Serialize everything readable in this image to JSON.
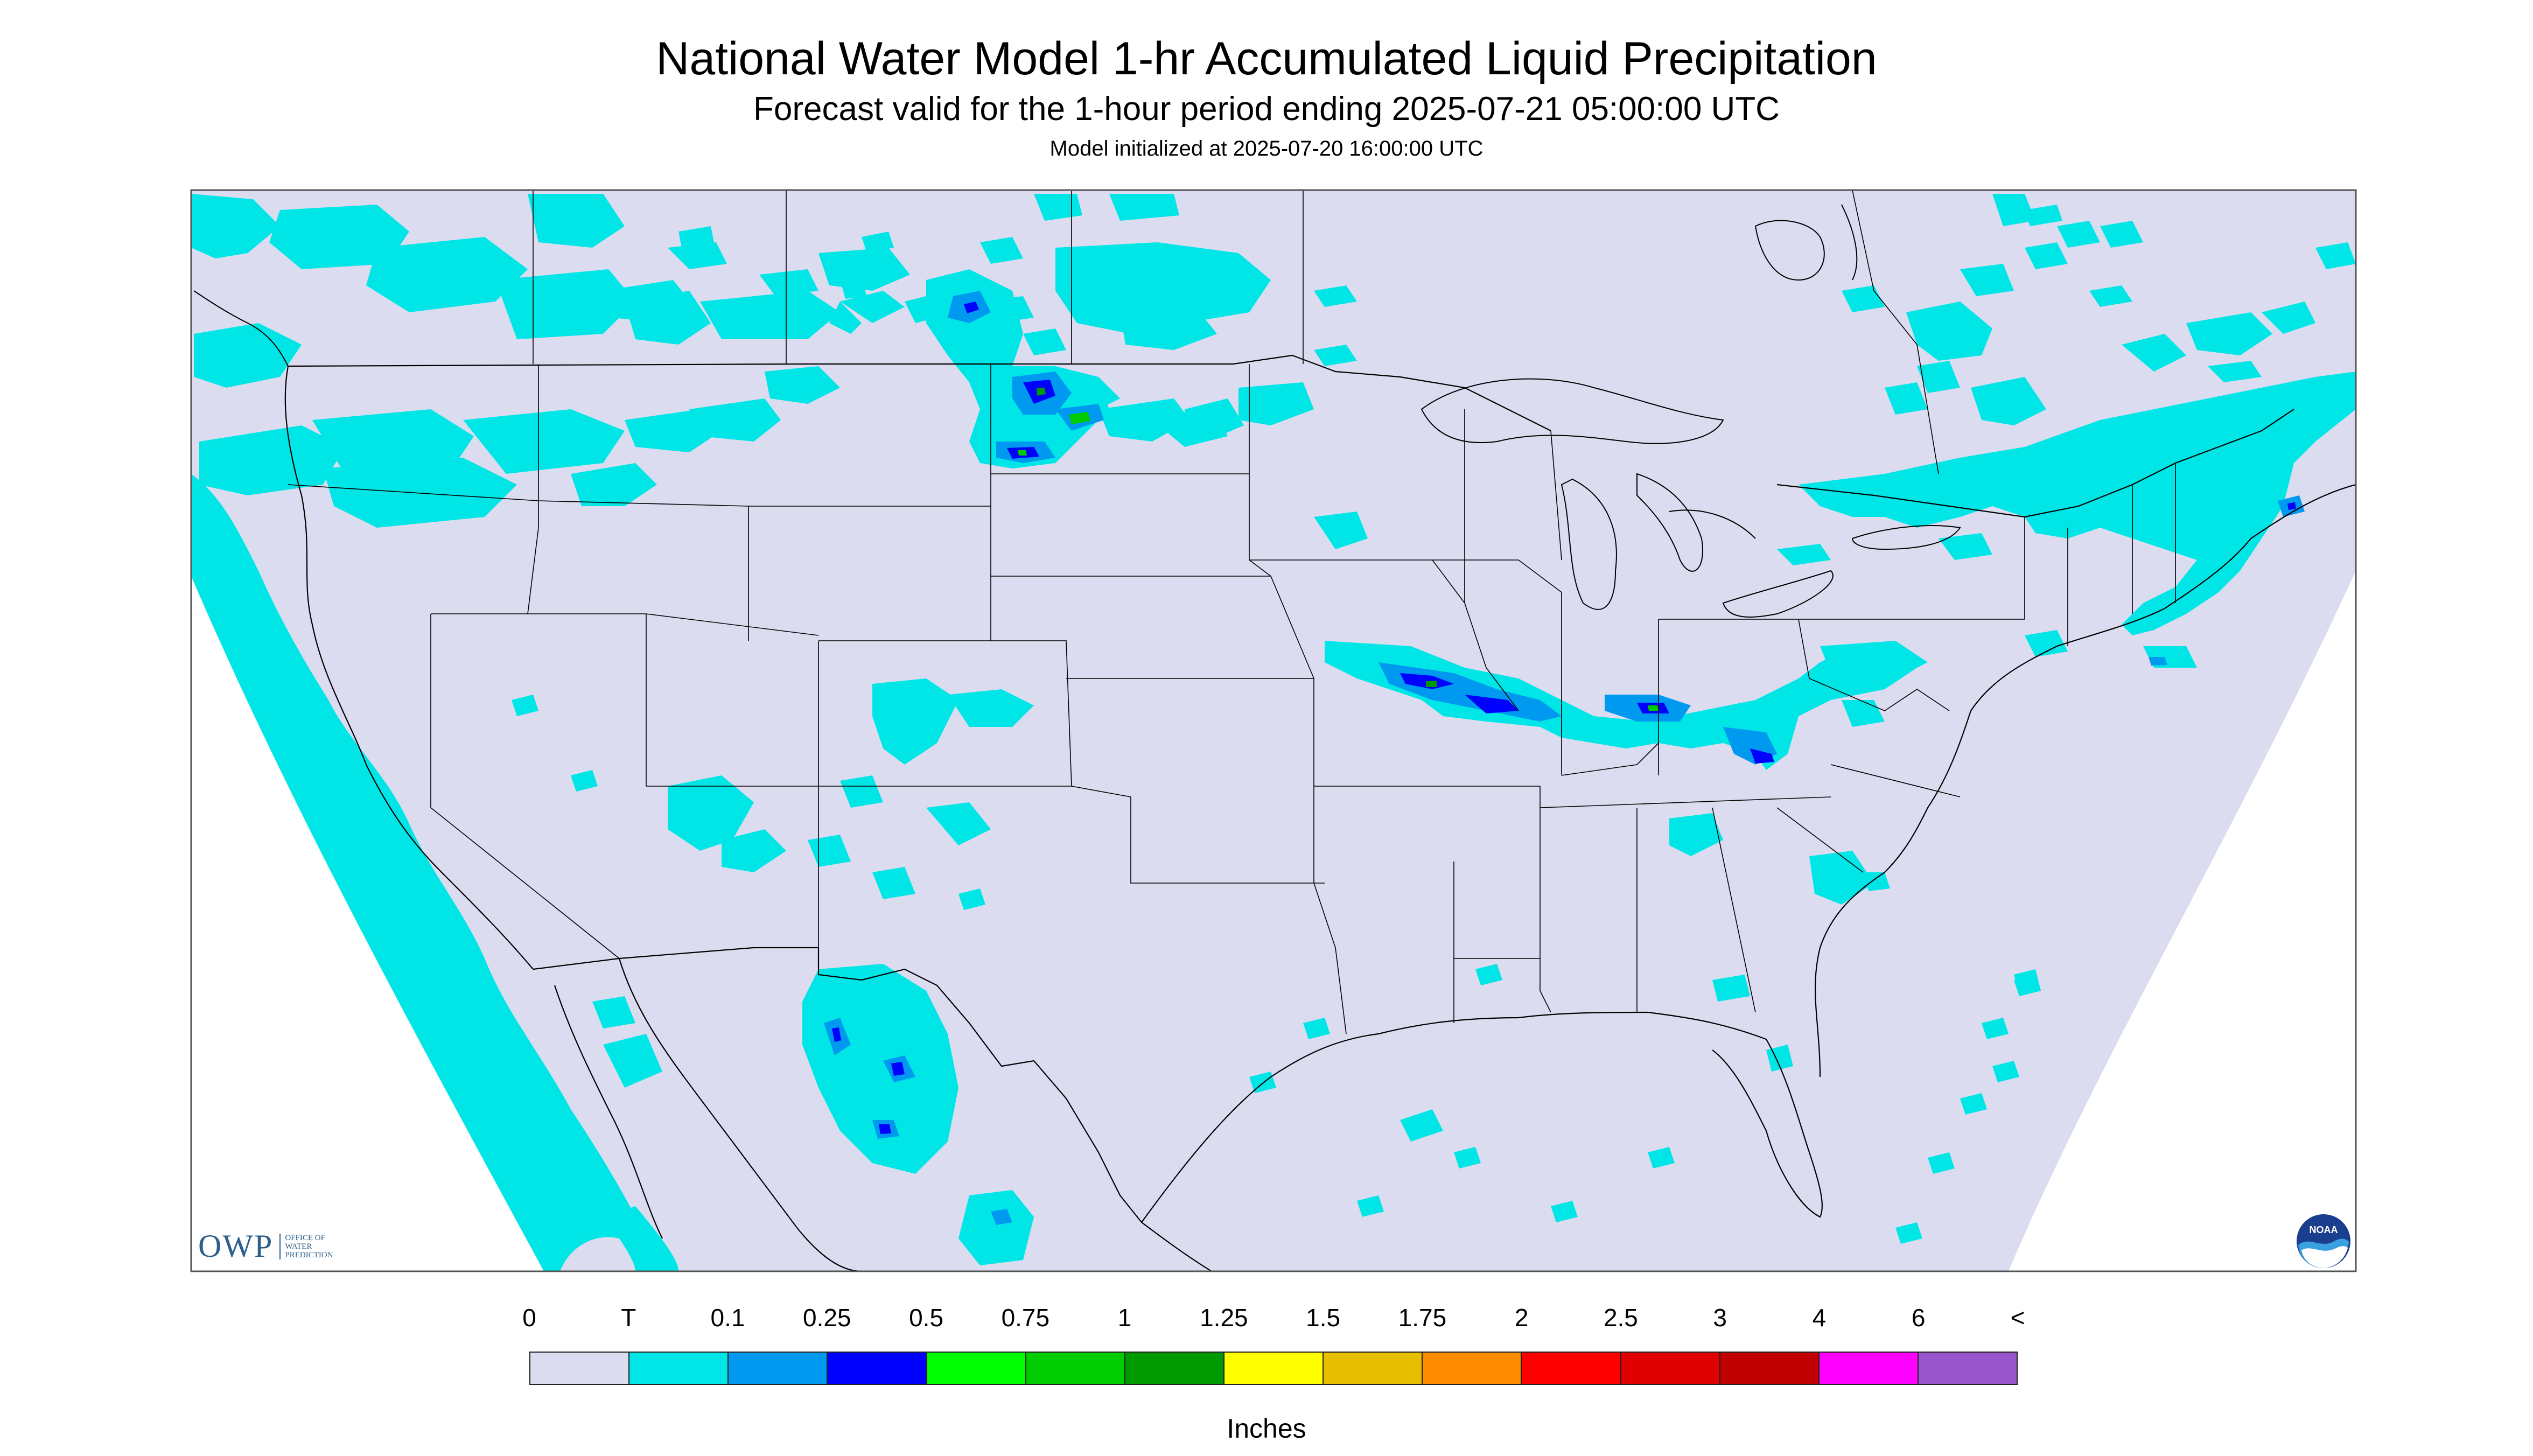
{
  "header": {
    "title": "National Water Model 1-hr Accumulated Liquid Precipitation",
    "subtitle": "Forecast valid for the 1-hour period ending 2025-07-21 05:00:00 UTC",
    "init": "Model initialized at 2025-07-20 16:00:00 UTC"
  },
  "legend": {
    "labels": [
      "0",
      "T",
      "0.1",
      "0.25",
      "0.5",
      "0.75",
      "1",
      "1.25",
      "1.5",
      "1.75",
      "2",
      "2.5",
      "3",
      "4",
      "6",
      "<"
    ],
    "colors": [
      "#dcdcf0",
      "#00e6e6",
      "#0099f0",
      "#0000ff",
      "#00ff00",
      "#00cc00",
      "#009900",
      "#ffff00",
      "#e6c000",
      "#ff8c00",
      "#ff0000",
      "#e00000",
      "#c00000",
      "#ff00ff",
      "#9955cc"
    ],
    "units": "Inches"
  },
  "logos": {
    "owp_mark": "OWP",
    "owp_text": [
      "OFFICE OF",
      "WATER",
      "PREDICTION"
    ],
    "noaa_text": "NOAA"
  },
  "map": {
    "background_color": "#dcdcf0",
    "outside_color": "#ffffff",
    "precip_trace_color": "#00e6e6",
    "precip_light_color": "#0099f0",
    "precip_moderate_color": "#0000ff",
    "precip_heavy_color": "#009900"
  }
}
